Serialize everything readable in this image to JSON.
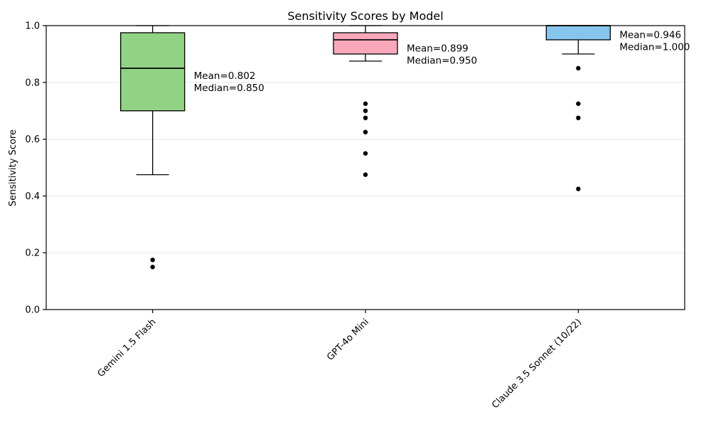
{
  "chart_data": {
    "type": "boxplot",
    "title": "Sensitivity Scores by Model",
    "ylabel": "Sensitivity Score",
    "xlabel": "",
    "ylim": [
      0.0,
      1.0
    ],
    "yticks": [
      "0.0",
      "0.2",
      "0.4",
      "0.6",
      "0.8",
      "1.0"
    ],
    "grid": "horizontal-light",
    "legend": "none",
    "spine_color": "#000000",
    "grid_color": "#e7e7e7",
    "outlier_color": "#000000",
    "categories": [
      "Gemini 1.5 Flash",
      "GPT-4o Mini",
      "Claude 3.5 Sonnet (10/22)"
    ],
    "boxes": [
      {
        "category": "Gemini 1.5 Flash",
        "fill": "#91d385",
        "whisker_low": 0.475,
        "q1": 0.7,
        "median": 0.85,
        "q3": 0.975,
        "whisker_high": 1.0,
        "outliers": [
          0.175,
          0.15
        ],
        "mean": 0.802,
        "mean_label": "Mean=0.802",
        "median_label": "Median=0.850"
      },
      {
        "category": "GPT-4o Mini",
        "fill": "#f8a8ba",
        "whisker_low": 0.875,
        "q1": 0.9,
        "median": 0.95,
        "q3": 0.975,
        "whisker_high": 1.0,
        "outliers": [
          0.725,
          0.7,
          0.675,
          0.625,
          0.55,
          0.475
        ],
        "mean": 0.899,
        "mean_label": "Mean=0.899",
        "median_label": "Median=0.950"
      },
      {
        "category": "Claude 3.5 Sonnet (10/22)",
        "fill": "#86c5ec",
        "whisker_low": 0.9,
        "q1": 0.95,
        "median": 1.0,
        "q3": 1.0,
        "whisker_high": 1.0,
        "outliers": [
          0.85,
          0.725,
          0.675,
          0.425
        ],
        "mean": 0.946,
        "mean_label": "Mean=0.946",
        "median_label": "Median=1.000"
      }
    ]
  }
}
